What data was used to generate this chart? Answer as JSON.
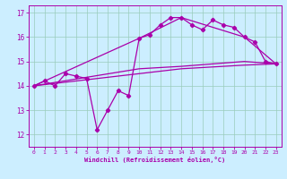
{
  "title": "",
  "xlabel": "Windchill (Refroidissement éolien,°C)",
  "ylabel": "",
  "xlim": [
    -0.5,
    23.5
  ],
  "ylim": [
    11.5,
    17.3
  ],
  "yticks": [
    12,
    13,
    14,
    15,
    16,
    17
  ],
  "xticks": [
    0,
    1,
    2,
    3,
    4,
    5,
    6,
    7,
    8,
    9,
    10,
    11,
    12,
    13,
    14,
    15,
    16,
    17,
    18,
    19,
    20,
    21,
    22,
    23
  ],
  "bg_color": "#cceeff",
  "line_color": "#aa00aa",
  "grid_color": "#99ccbb",
  "lines": [
    {
      "x": [
        0,
        1,
        2,
        3,
        4,
        5,
        6,
        7,
        8,
        9,
        10,
        11,
        12,
        13,
        14,
        15,
        16,
        17,
        18,
        19,
        20,
        21,
        22,
        23
      ],
      "y": [
        14.0,
        14.2,
        14.0,
        14.5,
        14.4,
        14.3,
        12.2,
        13.0,
        13.8,
        13.6,
        15.95,
        16.1,
        16.5,
        16.8,
        16.8,
        16.5,
        16.3,
        16.7,
        16.5,
        16.4,
        16.0,
        15.8,
        15.0,
        14.9
      ],
      "marker": "D",
      "markersize": 2.2,
      "linewidth": 0.9
    },
    {
      "x": [
        0,
        10,
        14,
        20,
        23
      ],
      "y": [
        14.0,
        15.95,
        16.8,
        16.0,
        14.9
      ],
      "marker": null,
      "markersize": 0,
      "linewidth": 0.9
    },
    {
      "x": [
        0,
        10,
        14,
        20,
        23
      ],
      "y": [
        14.0,
        14.7,
        14.8,
        15.0,
        14.9
      ],
      "marker": null,
      "markersize": 0,
      "linewidth": 0.9
    },
    {
      "x": [
        0,
        10,
        14,
        20,
        23
      ],
      "y": [
        14.0,
        14.5,
        14.7,
        14.85,
        14.9
      ],
      "marker": null,
      "markersize": 0,
      "linewidth": 0.9
    }
  ]
}
